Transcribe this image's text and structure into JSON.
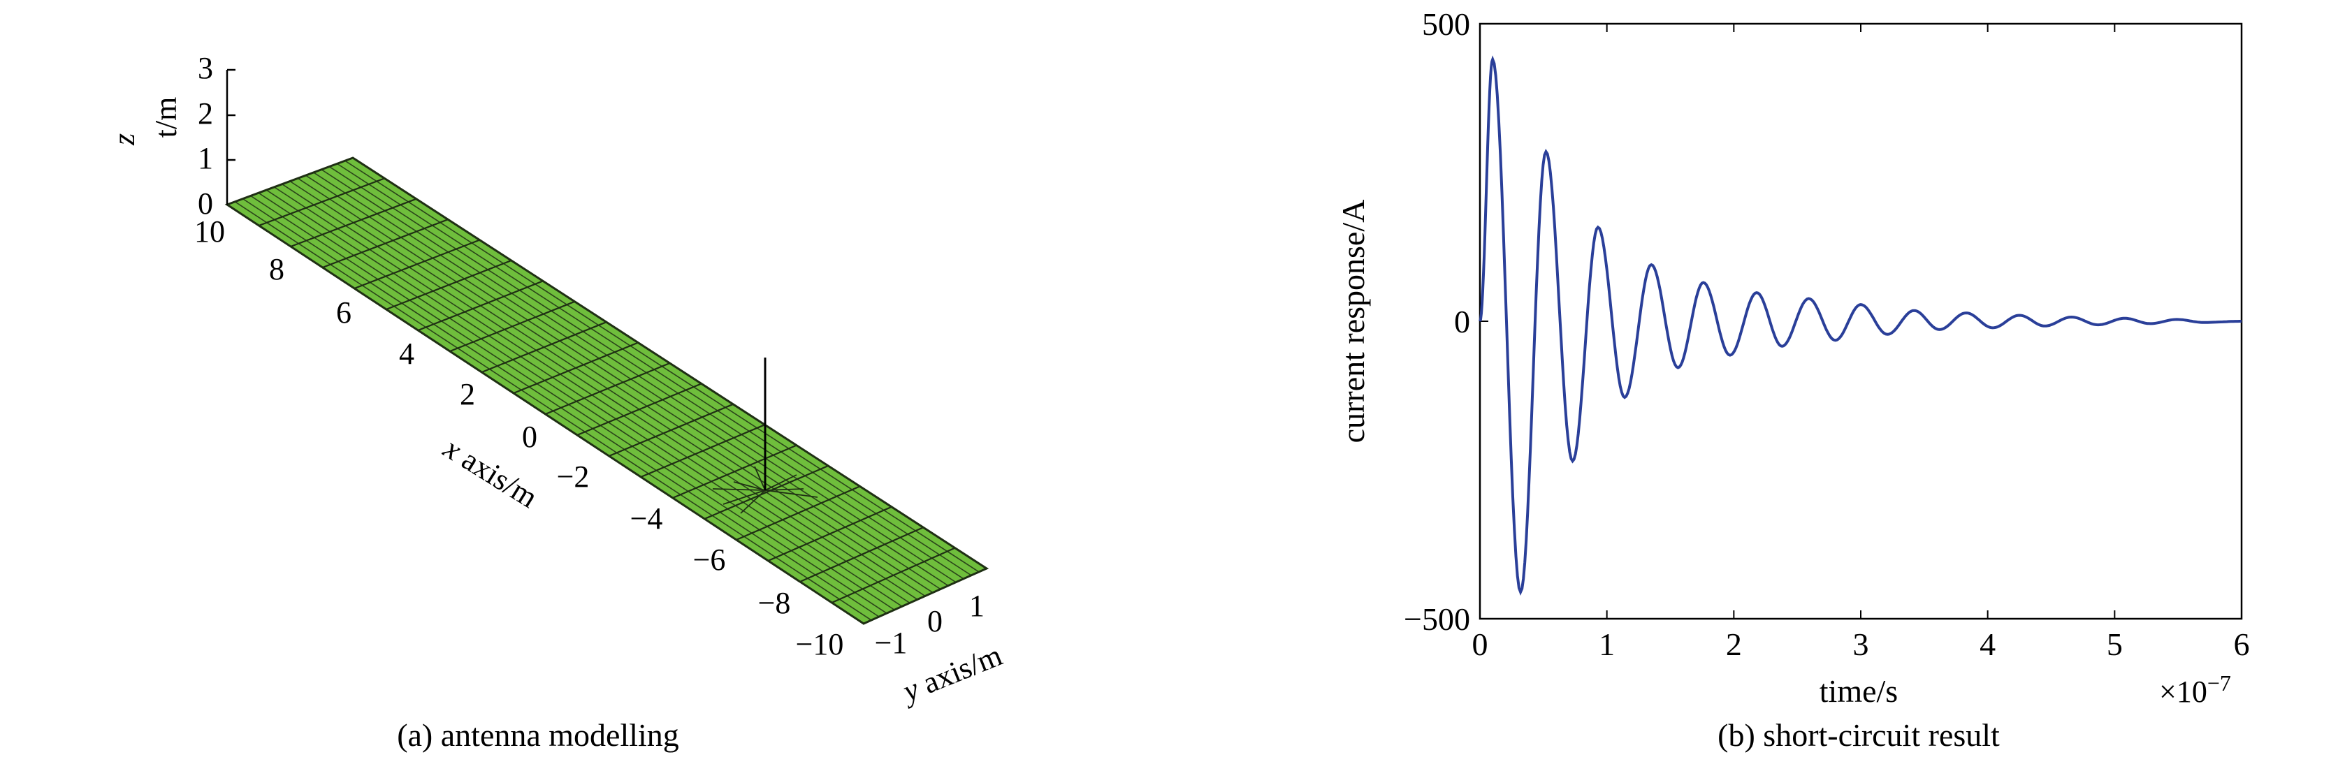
{
  "panels": {
    "left": {
      "caption": "(a) antenna modelling",
      "x_axis_label": "x axis/m",
      "y_axis_label": "y axis/m",
      "z_axis_label_var": "z",
      "z_axis_label_unit": "t/m",
      "x_ticks": [
        "10",
        "8",
        "6",
        "4",
        "2",
        "0",
        "−2",
        "−4",
        "−6",
        "−8",
        "−10"
      ],
      "y_ticks": [
        "−1",
        "0",
        "1"
      ],
      "z_ticks": [
        "0",
        "1",
        "2",
        "3"
      ],
      "plate_color": "#6fbe3c",
      "mesh_color": "#1f2f14"
    },
    "right": {
      "caption": "(b) short-circuit result",
      "x_axis_label": "time/s",
      "y_axis_label": "current response/A",
      "x_multiplier": "×10",
      "x_multiplier_exp": "−7",
      "x_ticks": [
        "0",
        "1",
        "2",
        "3",
        "4",
        "5",
        "6"
      ],
      "y_ticks": [
        "500",
        "0",
        "−500"
      ]
    }
  },
  "chart_data": [
    {
      "type": "other",
      "kind": "3D antenna model (ground plate mesh with vertical antenna)",
      "caption": "(a) antenna modelling",
      "xlabel": "x axis/m",
      "ylabel": "y axis/m",
      "zlabel": "z t/m",
      "xlim": [
        -10,
        10
      ],
      "ylim": [
        -1,
        1
      ],
      "zlim": [
        0,
        3
      ],
      "antenna": {
        "x": -3,
        "y": 0,
        "z_top": 2.5
      }
    },
    {
      "type": "line",
      "caption": "(b) short-circuit result",
      "xlabel": "time/s",
      "ylabel": "current response/A",
      "x_scale": "×10^-7",
      "xlim": [
        0,
        6
      ],
      "ylim": [
        -500,
        500
      ],
      "series": [
        {
          "color": "#2a3f99",
          "x": [
            0,
            0.1,
            0.32,
            0.52,
            0.73,
            0.93,
            1.14,
            1.35,
            1.56,
            1.76,
            1.97,
            2.18,
            2.38,
            2.59,
            2.8,
            3.0,
            3.21,
            3.42,
            3.62,
            3.83,
            4.04,
            4.25,
            4.45,
            4.66,
            4.87,
            5.08,
            5.28,
            5.49,
            5.7,
            6.0
          ],
          "y": [
            0,
            440,
            -455,
            285,
            -235,
            158,
            -128,
            95,
            -78,
            65,
            -57,
            48,
            -42,
            38,
            -32,
            28,
            -22,
            18,
            -14,
            14,
            -11,
            10,
            -8,
            7,
            -6,
            5,
            -4,
            3,
            -2,
            0
          ]
        }
      ]
    }
  ]
}
